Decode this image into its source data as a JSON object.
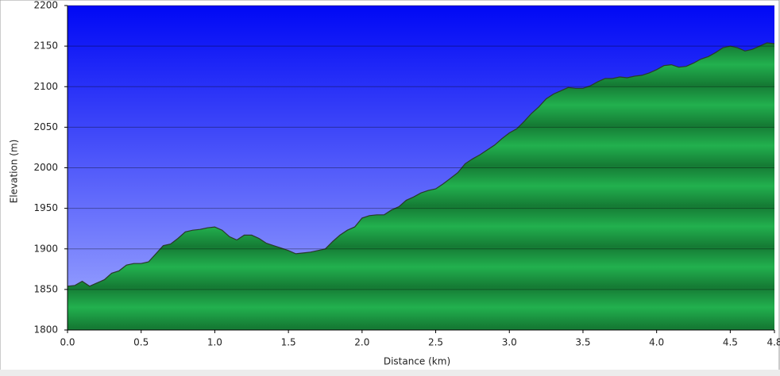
{
  "chart_data": {
    "type": "area",
    "ylabel": "Elevation (m)",
    "xlabel": "Distance (km)",
    "x": [
      0,
      0.05,
      0.1,
      0.15,
      0.2,
      0.25,
      0.3,
      0.35,
      0.4,
      0.45,
      0.5,
      0.55,
      0.6,
      0.65,
      0.7,
      0.75,
      0.8,
      0.85,
      0.9,
      0.95,
      1.0,
      1.05,
      1.1,
      1.15,
      1.2,
      1.25,
      1.3,
      1.35,
      1.4,
      1.45,
      1.5,
      1.55,
      1.6,
      1.65,
      1.7,
      1.75,
      1.8,
      1.85,
      1.9,
      1.95,
      2.0,
      2.05,
      2.1,
      2.15,
      2.2,
      2.25,
      2.3,
      2.35,
      2.4,
      2.45,
      2.5,
      2.55,
      2.6,
      2.65,
      2.7,
      2.75,
      2.8,
      2.85,
      2.9,
      2.95,
      3.0,
      3.05,
      3.1,
      3.15,
      3.2,
      3.25,
      3.3,
      3.35,
      3.4,
      3.45,
      3.5,
      3.55,
      3.6,
      3.65,
      3.7,
      3.75,
      3.8,
      3.85,
      3.9,
      3.95,
      4.0,
      4.05,
      4.1,
      4.15,
      4.2,
      4.25,
      4.3,
      4.35,
      4.4,
      4.45,
      4.5,
      4.55,
      4.6,
      4.65,
      4.7,
      4.75,
      4.8
    ],
    "values": [
      1854,
      1855,
      1860,
      1854,
      1858,
      1862,
      1870,
      1873,
      1880,
      1882,
      1882,
      1884,
      1894,
      1904,
      1906,
      1913,
      1921,
      1923,
      1924,
      1926,
      1927,
      1923,
      1915,
      1911,
      1917,
      1917,
      1913,
      1907,
      1904,
      1901,
      1898,
      1894,
      1895,
      1896,
      1898,
      1900,
      1909,
      1917,
      1923,
      1927,
      1938,
      1941,
      1942,
      1942,
      1948,
      1952,
      1960,
      1964,
      1969,
      1972,
      1974,
      1980,
      1987,
      1994,
      2005,
      2011,
      2016,
      2022,
      2028,
      2036,
      2043,
      2048,
      2057,
      2067,
      2075,
      2085,
      2091,
      2095,
      2099,
      2098,
      2098,
      2101,
      2106,
      2110,
      2110,
      2112,
      2111,
      2113,
      2114,
      2117,
      2121,
      2126,
      2127,
      2124,
      2125,
      2129,
      2134,
      2137,
      2142,
      2148,
      2150,
      2148,
      2144,
      2146,
      2150,
      2154,
      2153
    ],
    "color": "#1fa84a",
    "xlim": [
      0,
      4.8
    ],
    "ylim": [
      1800,
      2200
    ],
    "xticks": [
      {
        "value": 0,
        "label": "0.0"
      },
      0.5,
      {
        "value": 1,
        "label": "1.0"
      },
      1.5,
      {
        "value": 2,
        "label": "2.0"
      },
      2.5,
      {
        "value": 3,
        "label": "3.0"
      },
      3.5,
      {
        "value": 4,
        "label": "4.0"
      },
      4.5,
      4.8
    ],
    "yticks": [
      1800,
      1850,
      1900,
      1950,
      2000,
      2050,
      2100,
      2150,
      2200
    ],
    "grid": true
  }
}
